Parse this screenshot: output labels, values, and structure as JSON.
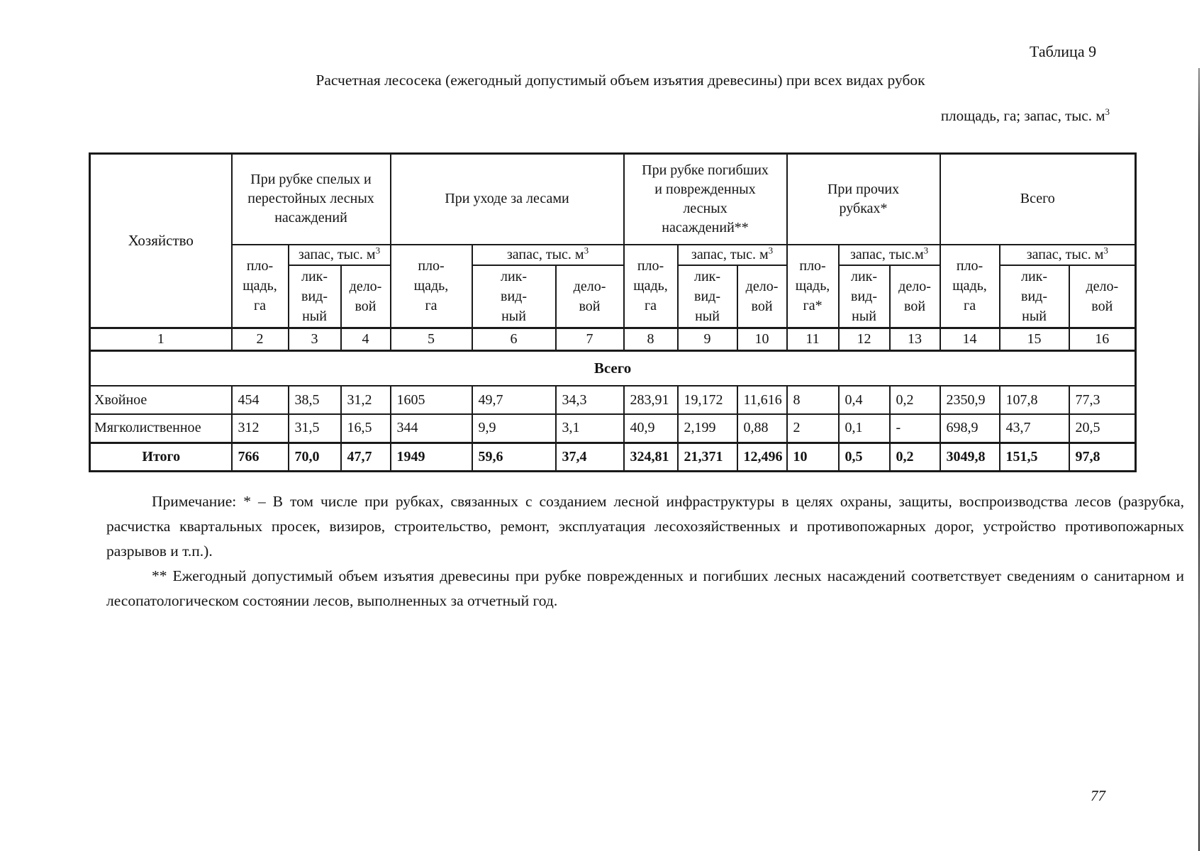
{
  "page": {
    "table_label": "Таблица 9",
    "title": "Расчетная лесосека (ежегодный допустимый объем изъятия древесины) при всех видах рубок",
    "units_text": "площадь, га; запас, тыс. м",
    "units_sup": "3",
    "page_number": "77"
  },
  "table": {
    "col1_header": "Хозяйство",
    "groups": [
      {
        "label": "При рубке спелых и\nперестойных лесных\nнасаждений",
        "area": "пло-\nщадь,\nга",
        "zapas": "запас, тыс. м",
        "zapas_sup": "3",
        "likv": "лик-\nвид-\nный",
        "delo": "дело-\nвой"
      },
      {
        "label": "При уходе за лесами",
        "area": "пло-\nщадь,\nга",
        "zapas": "запас, тыс. м",
        "zapas_sup": "3",
        "likv": "лик-\nвид-\nный",
        "delo": "дело-\nвой"
      },
      {
        "label": "При рубке погибших\nи поврежденных\nлесных\nнасаждений**",
        "area": "пло-\nщадь,\nга",
        "zapas": "запас, тыс. м",
        "zapas_sup": "3",
        "likv": "лик-\nвид-\nный",
        "delo": "дело-\nвой"
      },
      {
        "label": "При прочих\nрубках*",
        "area": "пло-\nщадь,\nга*",
        "zapas": "запас, тыс.м",
        "zapas_sup": "3",
        "likv": "лик-\nвид-\nный",
        "delo": "дело-\nвой"
      },
      {
        "label": "Всего",
        "area": "пло-\nщадь,\nга",
        "zapas": "запас, тыс. м",
        "zapas_sup": "3",
        "likv": "лик-\nвид-\nный",
        "delo": "дело-\nвой"
      }
    ],
    "col_numbers": [
      "1",
      "2",
      "3",
      "4",
      "5",
      "6",
      "7",
      "8",
      "9",
      "10",
      "11",
      "12",
      "13",
      "14",
      "15",
      "16"
    ],
    "section_label": "Всего",
    "small_value_columns": [
      6,
      7,
      8
    ],
    "rows": [
      {
        "label": "Хвойное",
        "bold": false,
        "values": [
          "454",
          "38,5",
          "31,2",
          "1605",
          "49,7",
          "34,3",
          "283,91",
          "19,172",
          "11,616",
          "8",
          "0,4",
          "0,2",
          "2350,9",
          "107,8",
          "77,3"
        ]
      },
      {
        "label": "Мягколиственное",
        "bold": false,
        "values": [
          "312",
          "31,5",
          "16,5",
          "344",
          "9,9",
          "3,1",
          "40,9",
          "2,199",
          "0,88",
          "2",
          "0,1",
          "-",
          "698,9",
          "43,7",
          "20,5"
        ]
      },
      {
        "label": "Итого",
        "bold": true,
        "values": [
          "766",
          "70,0",
          "47,7",
          "1949",
          "59,6",
          "37,4",
          "324,81",
          "21,371",
          "12,496",
          "10",
          "0,5",
          "0,2",
          "3049,8",
          "151,5",
          "97,8"
        ]
      }
    ]
  },
  "notes": {
    "note1": "Примечание: * – В том числе при рубках, связанных с созданием лесной инфраструктуры в целях охраны, защиты, воспроизводства лесов (разрубка, расчистка квартальных просек, визиров, строительство, ремонт, эксплуатация лесохозяйственных и противопожарных дорог, устройство противопожарных разрывов и т.п.).",
    "note2": "** Ежегодный допустимый объем изъятия древесины при рубке поврежденных и погибших лесных насаждений соответствует сведениям о санитарном и лесопатологическом состоянии лесов, выполненных за отчетный год."
  }
}
